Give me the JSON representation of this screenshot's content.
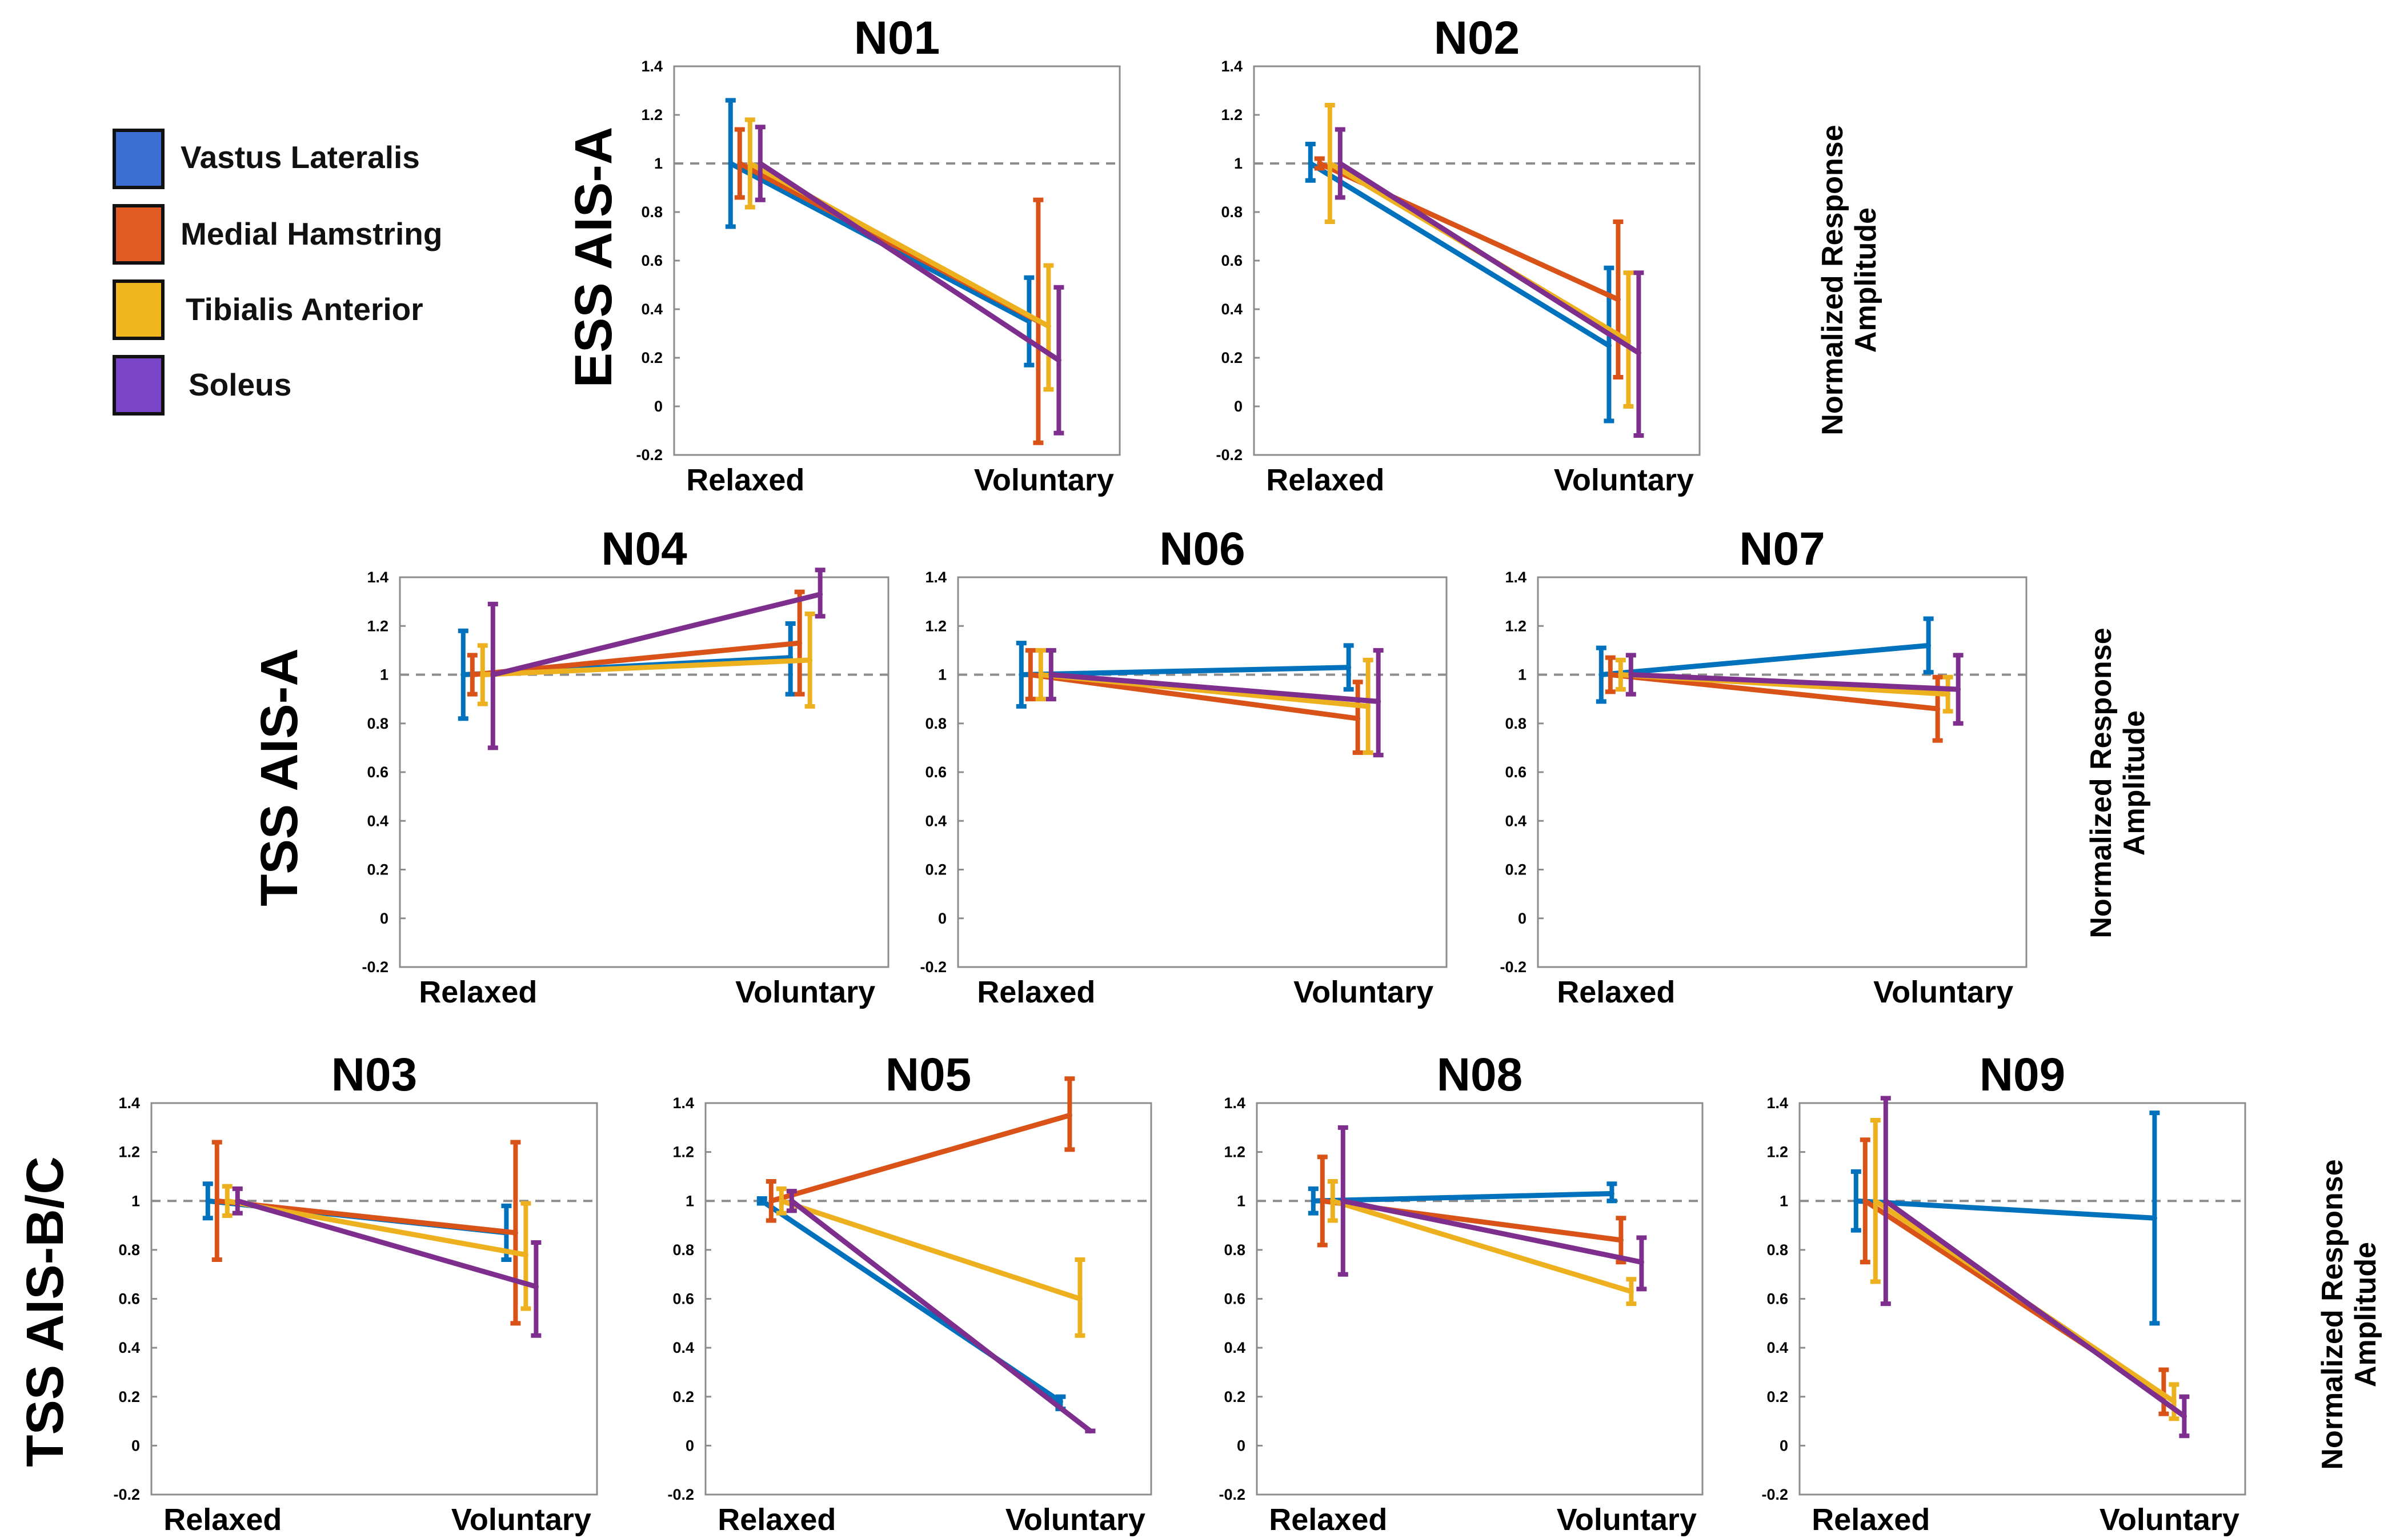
{
  "colors": {
    "vastus_lateralis": "#0072BD",
    "medial_hamstring": "#D95319",
    "tibialis_anterior": "#EDB120",
    "soleus": "#7E2F8E",
    "legend_vastus": "#3B6FD4",
    "legend_hamstring": "#E35B24",
    "legend_tibialis": "#F2B71E",
    "legend_soleus": "#7A45C8",
    "reference_line": "#8C8C8C",
    "axes": "#8C8C8C"
  },
  "legend": [
    {
      "label": "Vastus Lateralis",
      "color_key": "legend_vastus"
    },
    {
      "label": "Medial Hamstring",
      "color_key": "legend_hamstring"
    },
    {
      "label": "Tibialis Anterior",
      "color_key": "legend_tibialis"
    },
    {
      "label": "Soleus",
      "color_key": "legend_soleus"
    }
  ],
  "rows": [
    {
      "label": "ESS AIS-A",
      "ylabel": [
        "Normalized Response",
        "Amplitude"
      ]
    },
    {
      "label": "TSS AIS-A",
      "ylabel": [
        "Normalized Response",
        "Amplitude"
      ]
    },
    {
      "label": "TSS AIS-B/C",
      "ylabel": [
        "Normalized Response",
        "Amplitude"
      ]
    }
  ],
  "chart_data": [
    {
      "title": "N01",
      "type": "line",
      "row": 0,
      "categories": [
        "Relaxed",
        "Voluntary"
      ],
      "ylim": [
        -0.2,
        1.4
      ],
      "yticks": [
        "1.4",
        "1.2",
        "1",
        "0.8",
        "0.6",
        "0.4",
        "0.2",
        "0",
        "-0.2"
      ],
      "reference": 1,
      "series": [
        {
          "name": "Vastus Lateralis",
          "values": [
            1.0,
            0.35
          ],
          "lower": [
            0.74,
            0.17
          ],
          "upper": [
            1.26,
            0.53
          ]
        },
        {
          "name": "Medial Hamstring",
          "values": [
            1.0,
            0.35
          ],
          "lower": [
            0.86,
            -0.15
          ],
          "upper": [
            1.14,
            0.85
          ]
        },
        {
          "name": "Tibialis Anterior",
          "values": [
            1.0,
            0.33
          ],
          "lower": [
            0.82,
            0.07
          ],
          "upper": [
            1.18,
            0.58
          ]
        },
        {
          "name": "Soleus",
          "values": [
            1.0,
            0.19
          ],
          "lower": [
            0.85,
            -0.11
          ],
          "upper": [
            1.15,
            0.49
          ]
        }
      ]
    },
    {
      "title": "N02",
      "type": "line",
      "row": 0,
      "categories": [
        "Relaxed",
        "Voluntary"
      ],
      "ylim": [
        -0.2,
        1.4
      ],
      "yticks": [
        "1.4",
        "1.2",
        "1",
        "0.8",
        "0.6",
        "0.4",
        "0.2",
        "0",
        "-0.2"
      ],
      "reference": 1,
      "series": [
        {
          "name": "Vastus Lateralis",
          "values": [
            1.0,
            0.25
          ],
          "lower": [
            0.93,
            -0.06
          ],
          "upper": [
            1.08,
            0.57
          ]
        },
        {
          "name": "Medial Hamstring",
          "values": [
            1.0,
            0.44
          ],
          "lower": [
            0.98,
            0.12
          ],
          "upper": [
            1.02,
            0.76
          ]
        },
        {
          "name": "Tibialis Anterior",
          "values": [
            1.0,
            0.27
          ],
          "lower": [
            0.76,
            0.0
          ],
          "upper": [
            1.24,
            0.55
          ]
        },
        {
          "name": "Soleus",
          "values": [
            1.0,
            0.22
          ],
          "lower": [
            0.86,
            -0.12
          ],
          "upper": [
            1.14,
            0.55
          ]
        }
      ]
    },
    {
      "title": "N04",
      "type": "line",
      "row": 1,
      "categories": [
        "Relaxed",
        "Voluntary"
      ],
      "ylim": [
        -0.2,
        1.4
      ],
      "yticks": [
        "1.4",
        "1.2",
        "1",
        "0.8",
        "0.6",
        "0.4",
        "0.2",
        "0",
        "-0.2"
      ],
      "reference": 1,
      "series": [
        {
          "name": "Vastus Lateralis",
          "values": [
            1.0,
            1.07
          ],
          "lower": [
            0.82,
            0.92
          ],
          "upper": [
            1.18,
            1.21
          ]
        },
        {
          "name": "Medial Hamstring",
          "values": [
            1.0,
            1.13
          ],
          "lower": [
            0.92,
            0.92
          ],
          "upper": [
            1.08,
            1.34
          ]
        },
        {
          "name": "Tibialis Anterior",
          "values": [
            1.0,
            1.06
          ],
          "lower": [
            0.88,
            0.87
          ],
          "upper": [
            1.12,
            1.25
          ]
        },
        {
          "name": "Soleus",
          "values": [
            1.0,
            1.33
          ],
          "lower": [
            0.7,
            1.24
          ],
          "upper": [
            1.29,
            1.43
          ]
        }
      ]
    },
    {
      "title": "N06",
      "type": "line",
      "row": 1,
      "categories": [
        "Relaxed",
        "Voluntary"
      ],
      "ylim": [
        -0.2,
        1.4
      ],
      "yticks": [
        "1.4",
        "1.2",
        "1",
        "0.8",
        "0.6",
        "0.4",
        "0.2",
        "0",
        "-0.2"
      ],
      "reference": 1,
      "series": [
        {
          "name": "Vastus Lateralis",
          "values": [
            1.0,
            1.03
          ],
          "lower": [
            0.87,
            0.94
          ],
          "upper": [
            1.13,
            1.12
          ]
        },
        {
          "name": "Medial Hamstring",
          "values": [
            1.0,
            0.82
          ],
          "lower": [
            0.9,
            0.68
          ],
          "upper": [
            1.1,
            0.97
          ]
        },
        {
          "name": "Tibialis Anterior",
          "values": [
            1.0,
            0.87
          ],
          "lower": [
            0.9,
            0.68
          ],
          "upper": [
            1.1,
            1.06
          ]
        },
        {
          "name": "Soleus",
          "values": [
            1.0,
            0.89
          ],
          "lower": [
            0.9,
            0.67
          ],
          "upper": [
            1.1,
            1.1
          ]
        }
      ]
    },
    {
      "title": "N07",
      "type": "line",
      "row": 1,
      "categories": [
        "Relaxed",
        "Voluntary"
      ],
      "ylim": [
        -0.2,
        1.4
      ],
      "yticks": [
        "1.4",
        "1.2",
        "1",
        "0.8",
        "0.6",
        "0.4",
        "0.2",
        "0",
        "-0.2"
      ],
      "reference": 1,
      "series": [
        {
          "name": "Vastus Lateralis",
          "values": [
            1.0,
            1.12
          ],
          "lower": [
            0.89,
            1.01
          ],
          "upper": [
            1.11,
            1.23
          ]
        },
        {
          "name": "Medial Hamstring",
          "values": [
            1.0,
            0.86
          ],
          "lower": [
            0.93,
            0.73
          ],
          "upper": [
            1.07,
            0.99
          ]
        },
        {
          "name": "Tibialis Anterior",
          "values": [
            1.0,
            0.92
          ],
          "lower": [
            0.94,
            0.85
          ],
          "upper": [
            1.06,
            0.99
          ]
        },
        {
          "name": "Soleus",
          "values": [
            1.0,
            0.94
          ],
          "lower": [
            0.92,
            0.8
          ],
          "upper": [
            1.08,
            1.08
          ]
        }
      ]
    },
    {
      "title": "N03",
      "type": "line",
      "row": 2,
      "categories": [
        "Relaxed",
        "Voluntary"
      ],
      "ylim": [
        -0.2,
        1.4
      ],
      "yticks": [
        "1.4",
        "1.2",
        "1",
        "0.8",
        "0.6",
        "0.4",
        "0.2",
        "0",
        "-0.2"
      ],
      "reference": 1,
      "series": [
        {
          "name": "Vastus Lateralis",
          "values": [
            1.0,
            0.87
          ],
          "lower": [
            0.93,
            0.76
          ],
          "upper": [
            1.07,
            0.98
          ]
        },
        {
          "name": "Medial Hamstring",
          "values": [
            1.0,
            0.87
          ],
          "lower": [
            0.76,
            0.5
          ],
          "upper": [
            1.24,
            1.24
          ]
        },
        {
          "name": "Tibialis Anterior",
          "values": [
            1.0,
            0.78
          ],
          "lower": [
            0.94,
            0.56
          ],
          "upper": [
            1.06,
            0.99
          ]
        },
        {
          "name": "Soleus",
          "values": [
            1.0,
            0.65
          ],
          "lower": [
            0.95,
            0.45
          ],
          "upper": [
            1.05,
            0.83
          ]
        }
      ]
    },
    {
      "title": "N05",
      "type": "line",
      "row": 2,
      "categories": [
        "Relaxed",
        "Voluntary"
      ],
      "ylim": [
        -0.2,
        1.4
      ],
      "yticks": [
        "1.4",
        "1.2",
        "1",
        "0.8",
        "0.6",
        "0.4",
        "0.2",
        "0",
        "-0.2"
      ],
      "reference": 1,
      "series": [
        {
          "name": "Vastus Lateralis",
          "values": [
            1.0,
            0.18
          ],
          "lower": [
            0.99,
            0.15
          ],
          "upper": [
            1.01,
            0.2
          ]
        },
        {
          "name": "Medial Hamstring",
          "values": [
            1.0,
            1.35
          ],
          "lower": [
            0.92,
            1.21
          ],
          "upper": [
            1.08,
            1.5
          ]
        },
        {
          "name": "Tibialis Anterior",
          "values": [
            1.0,
            0.6
          ],
          "lower": [
            0.95,
            0.45
          ],
          "upper": [
            1.05,
            0.76
          ]
        },
        {
          "name": "Soleus",
          "values": [
            1.0,
            0.06
          ],
          "lower": [
            0.96,
            0.06
          ],
          "upper": [
            1.04,
            0.06
          ]
        }
      ]
    },
    {
      "title": "N08",
      "type": "line",
      "row": 2,
      "categories": [
        "Relaxed",
        "Voluntary"
      ],
      "ylim": [
        -0.2,
        1.4
      ],
      "yticks": [
        "1.4",
        "1.2",
        "1",
        "0.8",
        "0.6",
        "0.4",
        "0.2",
        "0",
        "-0.2"
      ],
      "reference": 1,
      "series": [
        {
          "name": "Vastus Lateralis",
          "values": [
            1.0,
            1.03
          ],
          "lower": [
            0.95,
            1.0
          ],
          "upper": [
            1.05,
            1.07
          ]
        },
        {
          "name": "Medial Hamstring",
          "values": [
            1.0,
            0.84
          ],
          "lower": [
            0.82,
            0.75
          ],
          "upper": [
            1.18,
            0.93
          ]
        },
        {
          "name": "Tibialis Anterior",
          "values": [
            1.0,
            0.63
          ],
          "lower": [
            0.92,
            0.58
          ],
          "upper": [
            1.08,
            0.68
          ]
        },
        {
          "name": "Soleus",
          "values": [
            1.0,
            0.75
          ],
          "lower": [
            0.7,
            0.64
          ],
          "upper": [
            1.3,
            0.85
          ]
        }
      ]
    },
    {
      "title": "N09",
      "type": "line",
      "row": 2,
      "categories": [
        "Relaxed",
        "Voluntary"
      ],
      "ylim": [
        -0.2,
        1.4
      ],
      "yticks": [
        "1.4",
        "1.2",
        "1",
        "0.8",
        "0.6",
        "0.4",
        "0.2",
        "0",
        "-0.2"
      ],
      "reference": 1,
      "series": [
        {
          "name": "Vastus Lateralis",
          "values": [
            1.0,
            0.93
          ],
          "lower": [
            0.88,
            0.5
          ],
          "upper": [
            1.12,
            1.36
          ]
        },
        {
          "name": "Medial Hamstring",
          "values": [
            1.0,
            0.2
          ],
          "lower": [
            0.75,
            0.13
          ],
          "upper": [
            1.25,
            0.31
          ]
        },
        {
          "name": "Tibialis Anterior",
          "values": [
            1.0,
            0.18
          ],
          "lower": [
            0.67,
            0.11
          ],
          "upper": [
            1.33,
            0.25
          ]
        },
        {
          "name": "Soleus",
          "values": [
            1.0,
            0.12
          ],
          "lower": [
            0.58,
            0.04
          ],
          "upper": [
            1.42,
            0.2
          ]
        }
      ]
    }
  ]
}
